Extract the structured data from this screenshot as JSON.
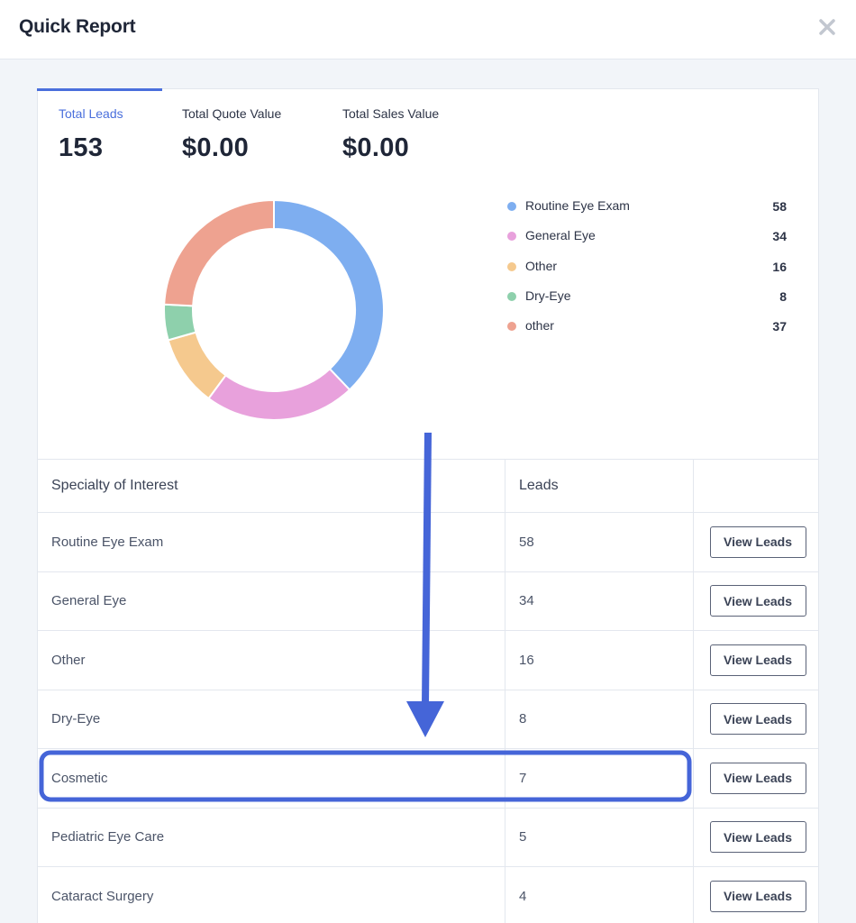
{
  "header": {
    "title": "Quick Report",
    "close_icon": "close-icon"
  },
  "stats": [
    {
      "label": "Total Leads",
      "value": "153",
      "active": true
    },
    {
      "label": "Total Quote Value",
      "value": "$0.00",
      "active": false
    },
    {
      "label": "Total Sales Value",
      "value": "$0.00",
      "active": false
    }
  ],
  "chart_data": {
    "type": "pie",
    "donut": true,
    "categories": [
      "Routine Eye Exam",
      "General Eye",
      "Other",
      "Dry-Eye",
      "other"
    ],
    "values": [
      58,
      34,
      16,
      8,
      37
    ],
    "colors": [
      "#7eaef0",
      "#e8a1dc",
      "#f5c98e",
      "#8ed0ac",
      "#eea290"
    ],
    "legend_position": "right"
  },
  "table": {
    "headers": [
      "Specialty of Interest",
      "Leads",
      ""
    ],
    "button_label": "View Leads",
    "rows": [
      {
        "specialty": "Routine Eye Exam",
        "leads": "58"
      },
      {
        "specialty": "General Eye",
        "leads": "34"
      },
      {
        "specialty": "Other",
        "leads": "16"
      },
      {
        "specialty": "Dry-Eye",
        "leads": "8"
      },
      {
        "specialty": "Cosmetic",
        "leads": "7"
      },
      {
        "specialty": "Pediatric Eye Care",
        "leads": "5"
      },
      {
        "specialty": "Cataract Surgery",
        "leads": "4"
      }
    ]
  },
  "annotation": {
    "color": "#4565d8",
    "highlight_row": "Cosmetic"
  }
}
